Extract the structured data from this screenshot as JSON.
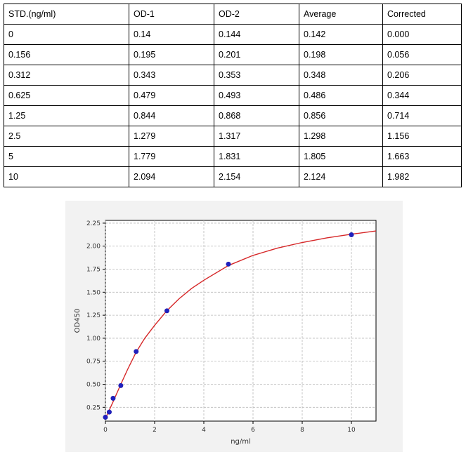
{
  "table": {
    "headers": [
      "STD.(ng/ml)",
      "OD-1",
      "OD-2",
      "Average",
      "Corrected"
    ],
    "rows": [
      [
        "0",
        "0.14",
        "0.144",
        "0.142",
        "0.000"
      ],
      [
        "0.156",
        "0.195",
        "0.201",
        "0.198",
        "0.056"
      ],
      [
        "0.312",
        "0.343",
        "0.353",
        "0.348",
        "0.206"
      ],
      [
        "0.625",
        "0.479",
        "0.493",
        "0.486",
        "0.344"
      ],
      [
        "1.25",
        "0.844",
        "0.868",
        "0.856",
        "0.714"
      ],
      [
        "2.5",
        "1.279",
        "1.317",
        "1.298",
        "1.156"
      ],
      [
        "5",
        "1.779",
        "1.831",
        "1.805",
        "1.663"
      ],
      [
        "10",
        "2.094",
        "2.154",
        "2.124",
        "1.982"
      ]
    ]
  },
  "chart_data": {
    "type": "scatter",
    "xlabel": "ng/ml",
    "ylabel": "OD450",
    "xlim": [
      0,
      11
    ],
    "ylim": [
      0.1,
      2.28
    ],
    "xticks": [
      0,
      2,
      4,
      6,
      8,
      10
    ],
    "yticks": [
      0.25,
      0.5,
      0.75,
      1.0,
      1.25,
      1.5,
      1.75,
      2.0,
      2.25
    ],
    "grid": true,
    "series": [
      {
        "kind": "points",
        "color": "#1f1fbf",
        "x": [
          0,
          0.156,
          0.312,
          0.625,
          1.25,
          2.5,
          5,
          10
        ],
        "y": [
          0.142,
          0.198,
          0.348,
          0.486,
          0.856,
          1.298,
          1.805,
          2.124
        ]
      },
      {
        "kind": "fitted-curve",
        "color": "#d62728",
        "x": [
          0,
          0.156,
          0.312,
          0.625,
          0.9,
          1.25,
          1.6,
          2.0,
          2.5,
          3.0,
          3.5,
          4.0,
          5.0,
          6.0,
          7.0,
          8.0,
          9.0,
          10.0,
          11.0
        ],
        "y": [
          0.13,
          0.22,
          0.31,
          0.5,
          0.66,
          0.85,
          1.0,
          1.14,
          1.3,
          1.43,
          1.54,
          1.63,
          1.79,
          1.9,
          1.98,
          2.04,
          2.09,
          2.13,
          2.165
        ]
      }
    ]
  }
}
